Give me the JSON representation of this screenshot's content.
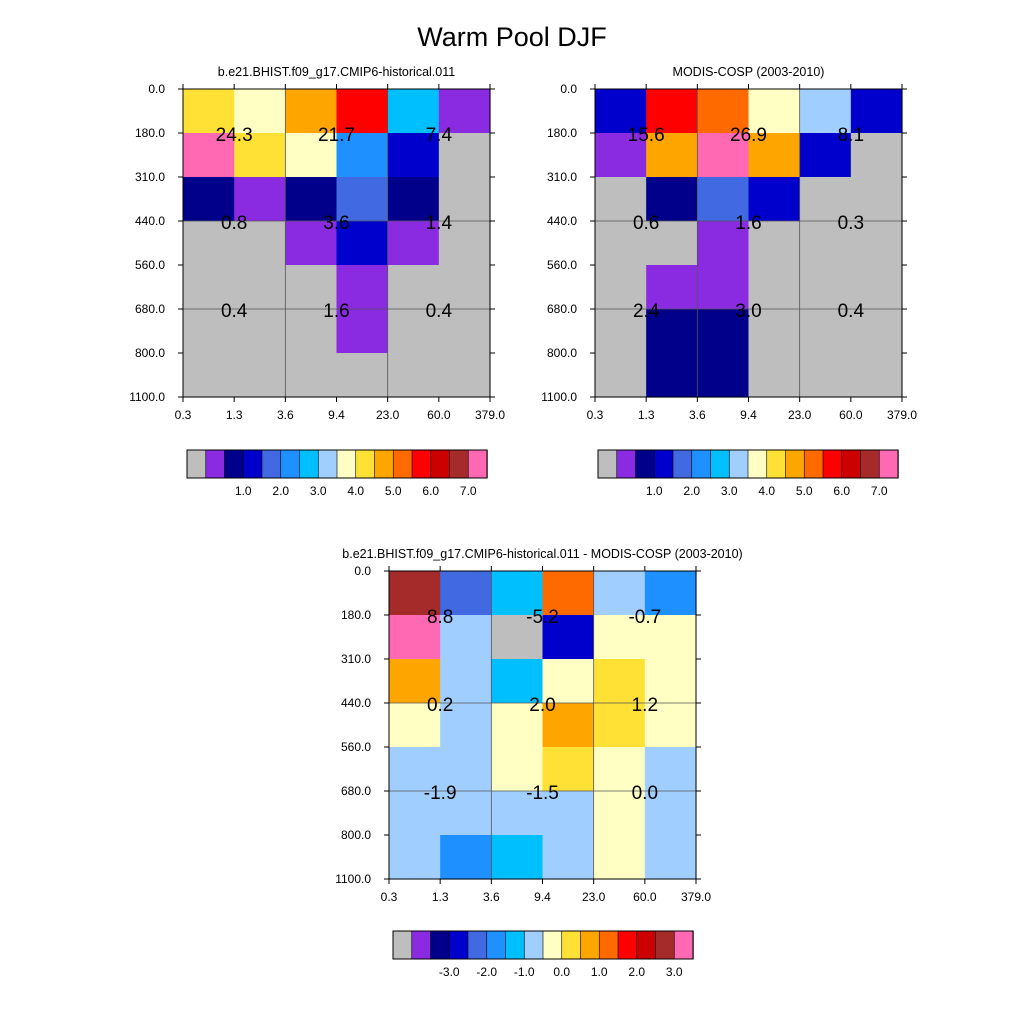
{
  "title": "Warm Pool DJF",
  "chart_data": [
    {
      "type": "heatmap",
      "title": "b.e21.BHIST.f09_g17.CMIP6-historical.011",
      "x_ticks": [
        "0.3",
        "1.3",
        "3.6",
        "9.4",
        "23.0",
        "60.0",
        "379.0"
      ],
      "y_ticks": [
        "0.0",
        "180.0",
        "310.0",
        "440.0",
        "560.0",
        "680.0",
        "800.0",
        "1100.0"
      ],
      "cell_colors": [
        [
          "#FFE135",
          "#FFFFC3",
          "#FFA500",
          "#FF0000",
          "#00BFFF",
          "#8A2BE2"
        ],
        [
          "#FF69B4",
          "#FFE135",
          "#FFFFC3",
          "#1E90FF",
          "#0000CD",
          "#BEBEBE"
        ],
        [
          "#00008B",
          "#8A2BE2",
          "#00008B",
          "#4169E1",
          "#00008B",
          "#BEBEBE"
        ],
        [
          "#BEBEBE",
          "#BEBEBE",
          "#8A2BE2",
          "#0000CD",
          "#8A2BE2",
          "#BEBEBE"
        ],
        [
          "#BEBEBE",
          "#BEBEBE",
          "#BEBEBE",
          "#8A2BE2",
          "#BEBEBE",
          "#BEBEBE"
        ],
        [
          "#BEBEBE",
          "#BEBEBE",
          "#BEBEBE",
          "#8A2BE2",
          "#BEBEBE",
          "#BEBEBE"
        ],
        [
          "#BEBEBE",
          "#BEBEBE",
          "#BEBEBE",
          "#BEBEBE",
          "#BEBEBE",
          "#BEBEBE"
        ]
      ],
      "annotations": [
        {
          "col": 0,
          "row": 1,
          "text": "24.3"
        },
        {
          "col": 1,
          "row": 1,
          "text": "21.7"
        },
        {
          "col": 2,
          "row": 1,
          "text": "7.4"
        },
        {
          "col": 0,
          "row": 3,
          "text": "0.8"
        },
        {
          "col": 1,
          "row": 3,
          "text": "3.6"
        },
        {
          "col": 2,
          "row": 3,
          "text": "1.4"
        },
        {
          "col": 0,
          "row": 5,
          "text": "0.4"
        },
        {
          "col": 1,
          "row": 5,
          "text": "1.6"
        },
        {
          "col": 2,
          "row": 5,
          "text": "0.4"
        }
      ],
      "colorbar": {
        "colors": [
          "#BEBEBE",
          "#8A2BE2",
          "#00008B",
          "#0000CD",
          "#4169E1",
          "#1E90FF",
          "#00BFFF",
          "#A0CFFF",
          "#FFFFC3",
          "#FFE135",
          "#FFA500",
          "#FF6A00",
          "#FF0000",
          "#CD0000",
          "#A52A2A",
          "#FF69B4"
        ],
        "labels": [
          "1.0",
          "2.0",
          "3.0",
          "4.0",
          "5.0",
          "6.0",
          "7.0"
        ]
      }
    },
    {
      "type": "heatmap",
      "title": "MODIS-COSP (2003-2010)",
      "x_ticks": [
        "0.3",
        "1.3",
        "3.6",
        "9.4",
        "23.0",
        "60.0",
        "379.0"
      ],
      "y_ticks": [
        "0.0",
        "180.0",
        "310.0",
        "440.0",
        "560.0",
        "680.0",
        "800.0",
        "1100.0"
      ],
      "cell_colors": [
        [
          "#0000CD",
          "#FF0000",
          "#FF6A00",
          "#FFFFC3",
          "#A0CFFF",
          "#0000CD"
        ],
        [
          "#8A2BE2",
          "#FFA500",
          "#FF69B4",
          "#FFA500",
          "#0000CD",
          "#BEBEBE"
        ],
        [
          "#BEBEBE",
          "#00008B",
          "#4169E1",
          "#0000CD",
          "#BEBEBE",
          "#BEBEBE"
        ],
        [
          "#BEBEBE",
          "#BEBEBE",
          "#8A2BE2",
          "#BEBEBE",
          "#BEBEBE",
          "#BEBEBE"
        ],
        [
          "#BEBEBE",
          "#8A2BE2",
          "#8A2BE2",
          "#BEBEBE",
          "#BEBEBE",
          "#BEBEBE"
        ],
        [
          "#BEBEBE",
          "#00008B",
          "#00008B",
          "#BEBEBE",
          "#BEBEBE",
          "#BEBEBE"
        ],
        [
          "#BEBEBE",
          "#00008B",
          "#00008B",
          "#BEBEBE",
          "#BEBEBE",
          "#BEBEBE"
        ]
      ],
      "annotations": [
        {
          "col": 0,
          "row": 1,
          "text": "15.6"
        },
        {
          "col": 1,
          "row": 1,
          "text": "26.9"
        },
        {
          "col": 2,
          "row": 1,
          "text": "8.1"
        },
        {
          "col": 0,
          "row": 3,
          "text": "0.6"
        },
        {
          "col": 1,
          "row": 3,
          "text": "1.6"
        },
        {
          "col": 2,
          "row": 3,
          "text": "0.3"
        },
        {
          "col": 0,
          "row": 5,
          "text": "2.4"
        },
        {
          "col": 1,
          "row": 5,
          "text": "3.0"
        },
        {
          "col": 2,
          "row": 5,
          "text": "0.4"
        }
      ],
      "colorbar": {
        "colors": [
          "#BEBEBE",
          "#8A2BE2",
          "#00008B",
          "#0000CD",
          "#4169E1",
          "#1E90FF",
          "#00BFFF",
          "#A0CFFF",
          "#FFFFC3",
          "#FFE135",
          "#FFA500",
          "#FF6A00",
          "#FF0000",
          "#CD0000",
          "#A52A2A",
          "#FF69B4"
        ],
        "labels": [
          "1.0",
          "2.0",
          "3.0",
          "4.0",
          "5.0",
          "6.0",
          "7.0"
        ]
      }
    },
    {
      "type": "heatmap",
      "title": "b.e21.BHIST.f09_g17.CMIP6-historical.011 - MODIS-COSP (2003-2010)",
      "x_ticks": [
        "0.3",
        "1.3",
        "3.6",
        "9.4",
        "23.0",
        "60.0",
        "379.0"
      ],
      "y_ticks": [
        "0.0",
        "180.0",
        "310.0",
        "440.0",
        "560.0",
        "680.0",
        "800.0",
        "1100.0"
      ],
      "cell_colors": [
        [
          "#A52A2A",
          "#4169E1",
          "#00BFFF",
          "#FF6A00",
          "#A0CFFF",
          "#1E90FF"
        ],
        [
          "#FF69B4",
          "#A0CFFF",
          "#BEBEBE",
          "#0000CD",
          "#FFFFC3",
          "#FFFFC3"
        ],
        [
          "#FFA500",
          "#A0CFFF",
          "#00BFFF",
          "#FFFFC3",
          "#FFE135",
          "#FFFFC3"
        ],
        [
          "#FFFFC3",
          "#A0CFFF",
          "#FFFFC3",
          "#FFA500",
          "#FFE135",
          "#FFFFC3"
        ],
        [
          "#A0CFFF",
          "#A0CFFF",
          "#FFFFC3",
          "#FFE135",
          "#FFFFC3",
          "#A0CFFF"
        ],
        [
          "#A0CFFF",
          "#A0CFFF",
          "#A0CFFF",
          "#A0CFFF",
          "#FFFFC3",
          "#A0CFFF"
        ],
        [
          "#A0CFFF",
          "#1E90FF",
          "#00BFFF",
          "#A0CFFF",
          "#FFFFC3",
          "#A0CFFF"
        ]
      ],
      "annotations": [
        {
          "col": 0,
          "row": 1,
          "text": "8.8"
        },
        {
          "col": 1,
          "row": 1,
          "text": "-5.2"
        },
        {
          "col": 2,
          "row": 1,
          "text": "-0.7"
        },
        {
          "col": 0,
          "row": 3,
          "text": "0.2"
        },
        {
          "col": 1,
          "row": 3,
          "text": "2.0"
        },
        {
          "col": 2,
          "row": 3,
          "text": "1.2"
        },
        {
          "col": 0,
          "row": 5,
          "text": "-1.9"
        },
        {
          "col": 1,
          "row": 5,
          "text": "-1.5"
        },
        {
          "col": 2,
          "row": 5,
          "text": "0.0"
        }
      ],
      "colorbar": {
        "colors": [
          "#BEBEBE",
          "#8A2BE2",
          "#00008B",
          "#0000CD",
          "#4169E1",
          "#1E90FF",
          "#00BFFF",
          "#A0CFFF",
          "#FFFFC3",
          "#FFE135",
          "#FFA500",
          "#FF6A00",
          "#FF0000",
          "#CD0000",
          "#A52A2A",
          "#FF69B4"
        ],
        "labels": [
          "-3.0",
          "-2.0",
          "-1.0",
          "0.0",
          "1.0",
          "2.0",
          "3.0"
        ]
      }
    }
  ]
}
